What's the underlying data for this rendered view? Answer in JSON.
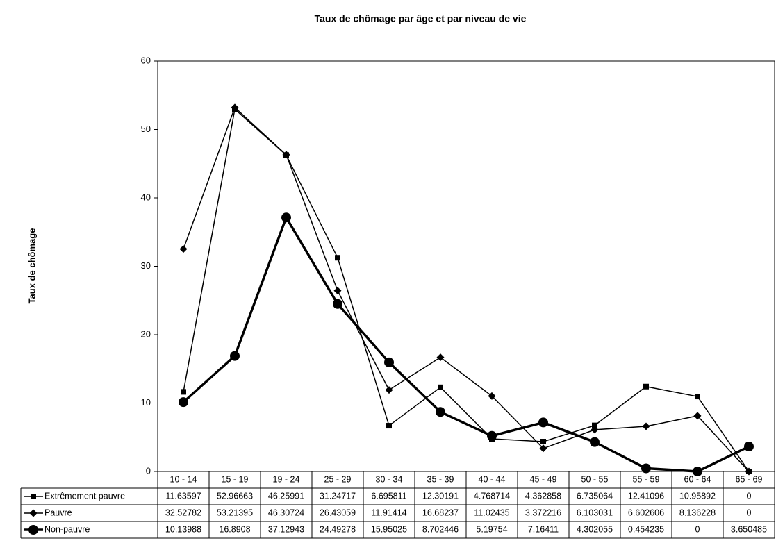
{
  "chart_data": {
    "type": "line",
    "title": "Taux de chômage par âge et par niveau de vie",
    "y_label": "Taux de chômage",
    "categories": [
      "10 - 14",
      "15 - 19",
      "19 - 24",
      "25 - 29",
      "30 - 34",
      "35 - 39",
      "40 - 44",
      "45 - 49",
      "50 - 55",
      "55 - 59",
      "60 - 64",
      "65 - 69"
    ],
    "ylim": [
      0,
      60
    ],
    "yticks": [
      0,
      10,
      20,
      30,
      40,
      50,
      60
    ],
    "grid": false,
    "series": [
      {
        "name": "Extrêmement pauvre",
        "color": "#000000",
        "marker": "square",
        "line_width": 1.5,
        "values": [
          11.63597,
          52.96663,
          46.25991,
          31.24717,
          6.695811,
          12.30191,
          4.768714,
          4.362858,
          6.735064,
          12.41096,
          10.95892,
          0
        ]
      },
      {
        "name": "Pauvre",
        "color": "#000000",
        "marker": "diamond",
        "line_width": 1.5,
        "values": [
          32.52782,
          53.21395,
          46.30724,
          26.43059,
          11.91414,
          16.68237,
          11.02435,
          3.372216,
          6.103031,
          6.602606,
          8.136228,
          0
        ]
      },
      {
        "name": "Non-pauvre",
        "color": "#000000",
        "marker": "circle",
        "line_width": 3.5,
        "values": [
          10.13988,
          16.8908,
          37.12943,
          24.49278,
          15.95025,
          8.702446,
          5.19754,
          7.16411,
          4.302055,
          0.454235,
          0,
          3.650485
        ]
      }
    ]
  }
}
